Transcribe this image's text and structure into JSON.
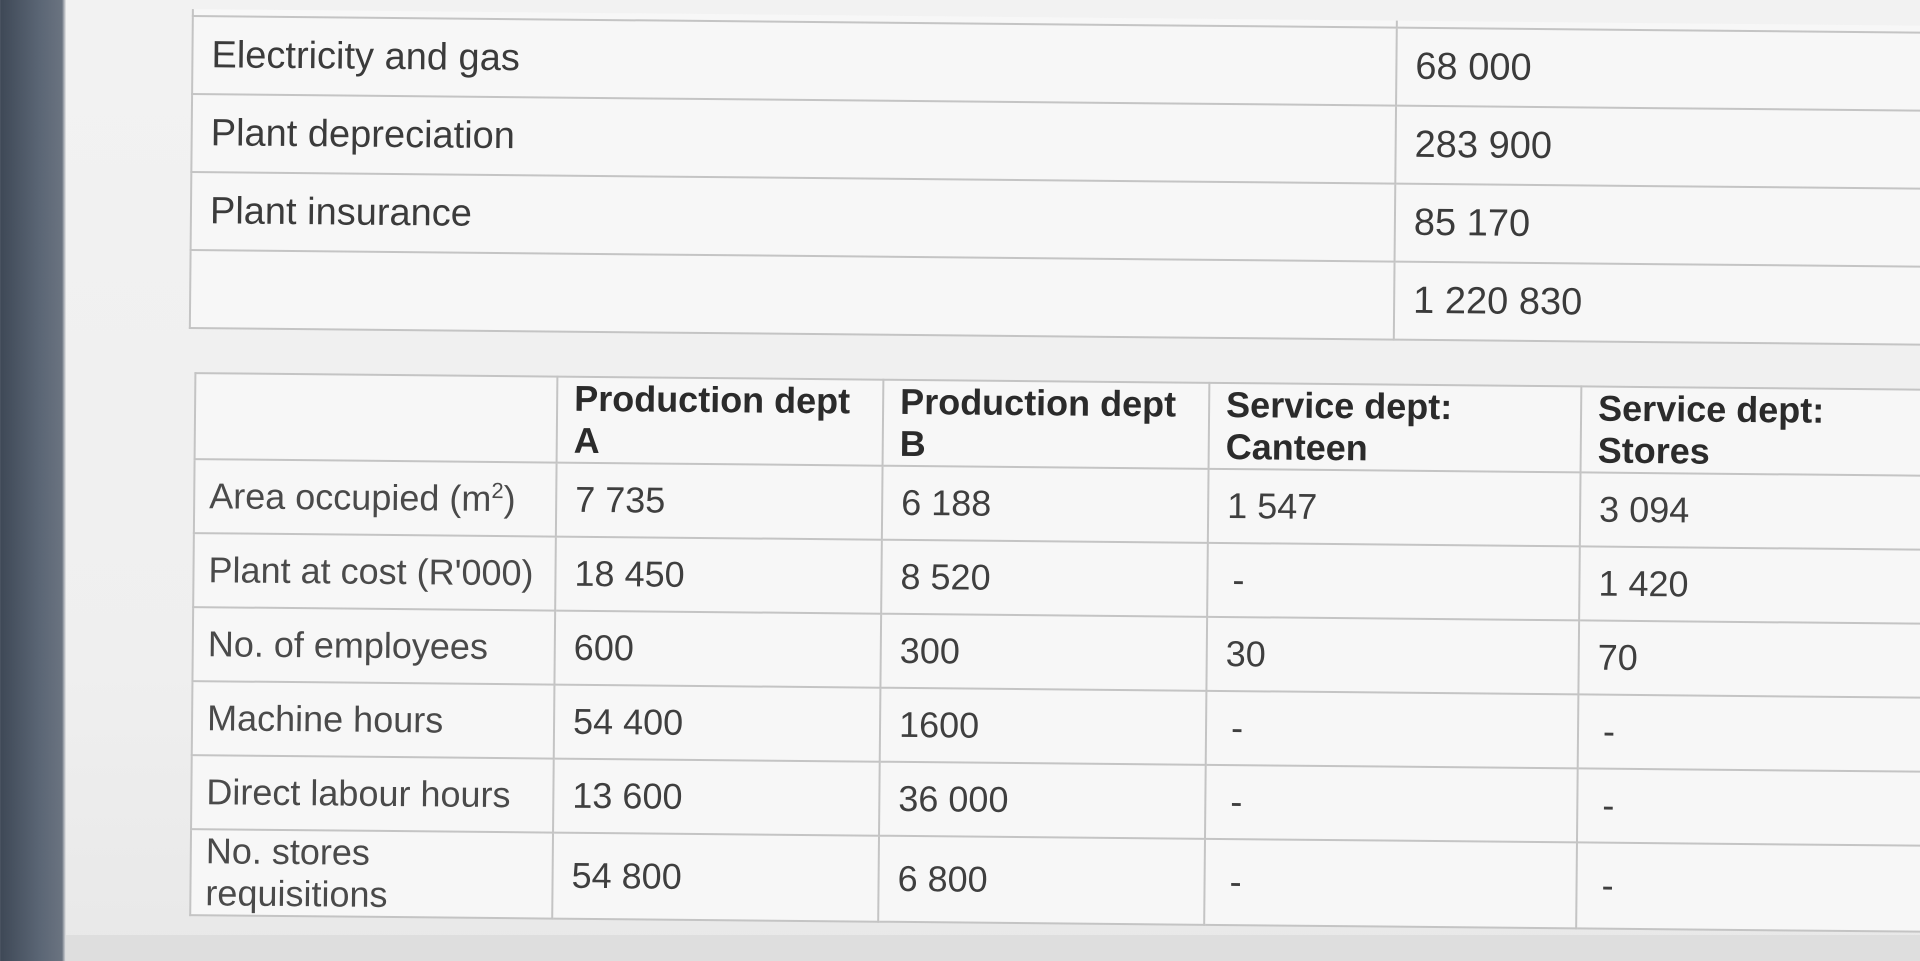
{
  "cost_table": {
    "rows": [
      {
        "label": "Electricity and gas",
        "value": "68 000"
      },
      {
        "label": "Plant depreciation",
        "value": "283 900"
      },
      {
        "label": "Plant insurance",
        "value": "85 170"
      },
      {
        "label": "",
        "value": "1 220 830"
      }
    ]
  },
  "dept_table": {
    "headers": [
      "",
      "Production dept A",
      "Production dept B",
      "Service dept: Canteen",
      "Service dept: Stores"
    ],
    "rows": [
      {
        "label": "Area occupied (m",
        "label_sup": "2",
        "label_tail": ")",
        "values": [
          "7 735",
          "6 188",
          "1 547",
          "3 094"
        ]
      },
      {
        "label": "Plant at cost (R'000)",
        "values": [
          "18 450",
          "8 520",
          "-",
          "1 420"
        ]
      },
      {
        "label": "No. of employees",
        "values": [
          "600",
          "300",
          "30",
          "70"
        ]
      },
      {
        "label": "Machine hours",
        "values": [
          "54 400",
          "1600",
          "-",
          "-"
        ]
      },
      {
        "label": "Direct labour hours",
        "values": [
          "13 600",
          "36 000",
          "-",
          "-"
        ]
      },
      {
        "label": "No. stores requisitions",
        "values": [
          "54 800",
          "6 800",
          "-",
          "-"
        ]
      }
    ]
  }
}
